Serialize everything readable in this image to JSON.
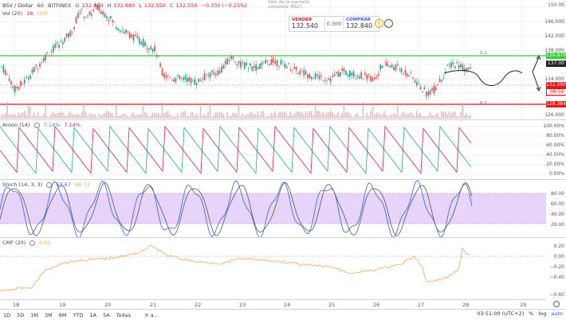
{
  "header": {
    "symbol": "BSV / Dollar",
    "interval": "60",
    "exchange": "BITFINEX",
    "ohlc": [
      {
        "label": "O",
        "value": "132.880"
      },
      {
        "label": "H",
        "value": "132.880"
      },
      {
        "label": "L",
        "value": "132.550"
      },
      {
        "label": "C",
        "value": "132.550"
      }
    ],
    "change": "−0.330 (−0.25%)",
    "fullscreen_hint": "Salir de la pantalla completa (ESC)"
  },
  "volume": {
    "label": "Vol (20)",
    "value1": "16",
    "value2": "(20)"
  },
  "trade": {
    "sell_label": "VENDER",
    "sell_price": "132.540",
    "spread": "0.300",
    "buy_label": "COMPRAR",
    "buy_price": "132.840"
  },
  "price_axis": {
    "ticks": [
      "150.00",
      "146.000",
      "142.000",
      "138.000",
      "134.000",
      "130.000",
      "126.000"
    ],
    "tag_green": "139.879",
    "tag_black": "137.00",
    "tag_red_price": "132.590",
    "tag_countdown": "08:59",
    "tag_red_line": "128.384"
  },
  "levels": {
    "upper_label": "0.1",
    "lower_label": "0.1"
  },
  "aroon": {
    "label": "Aroon (14)",
    "up": "7.14%",
    "down": "7.14%",
    "ticks": [
      "100.00%",
      "80.00%",
      "60.00%",
      "40.00%",
      "20.00%",
      "0.00%"
    ]
  },
  "stoch": {
    "label": "Stoch (14, 3, 3)",
    "k": "63.67",
    "d": "68.72",
    "ticks": [
      "80.00",
      "60.00",
      "40.00",
      "20.00"
    ]
  },
  "cmf": {
    "label": "CMF (20)",
    "value": "0.01",
    "ticks": [
      "0.20",
      "0.00",
      "−0.20",
      "−0.40",
      "−0.60"
    ]
  },
  "dates": [
    "18",
    "19",
    "20",
    "21",
    "22",
    "23",
    "24",
    "25",
    "26",
    "27",
    "28",
    "29"
  ],
  "bottom": {
    "timeframes": [
      "1D",
      "5D",
      "1M",
      "3M",
      "6M",
      "YTD",
      "1A",
      "5A",
      "Todas"
    ],
    "goto": "Ir a...",
    "clock": "03:51:00 (UTC+2)",
    "percent": "%",
    "log": "log",
    "auto": "auto"
  },
  "colors": {
    "green_line": "#33cc33",
    "red_line": "#e5161b",
    "candle_up": "#26a69a",
    "candle_down": "#ef5350",
    "stoch_band": "#d9b8f5",
    "cmf": "#f7a35c"
  }
}
